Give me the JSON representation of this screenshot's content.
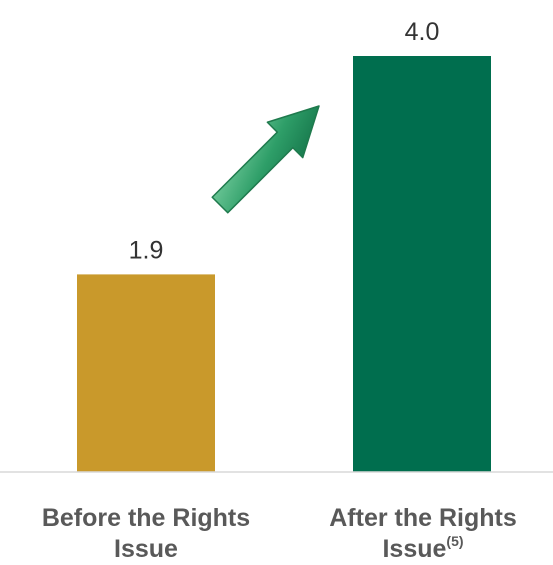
{
  "chart_data": {
    "type": "bar",
    "categories": [
      "Before the Rights Issue",
      "After the Rights Issue"
    ],
    "category_footnotes": [
      "",
      "(5)"
    ],
    "values": [
      1.9,
      4.0
    ],
    "value_labels": [
      "1.9",
      "4.0"
    ],
    "colors": [
      "#C9992B",
      "#006E4E"
    ],
    "arrow_color": "#2E9E68",
    "ylim": [
      0,
      4.0
    ],
    "grid": false,
    "legend": "none"
  }
}
